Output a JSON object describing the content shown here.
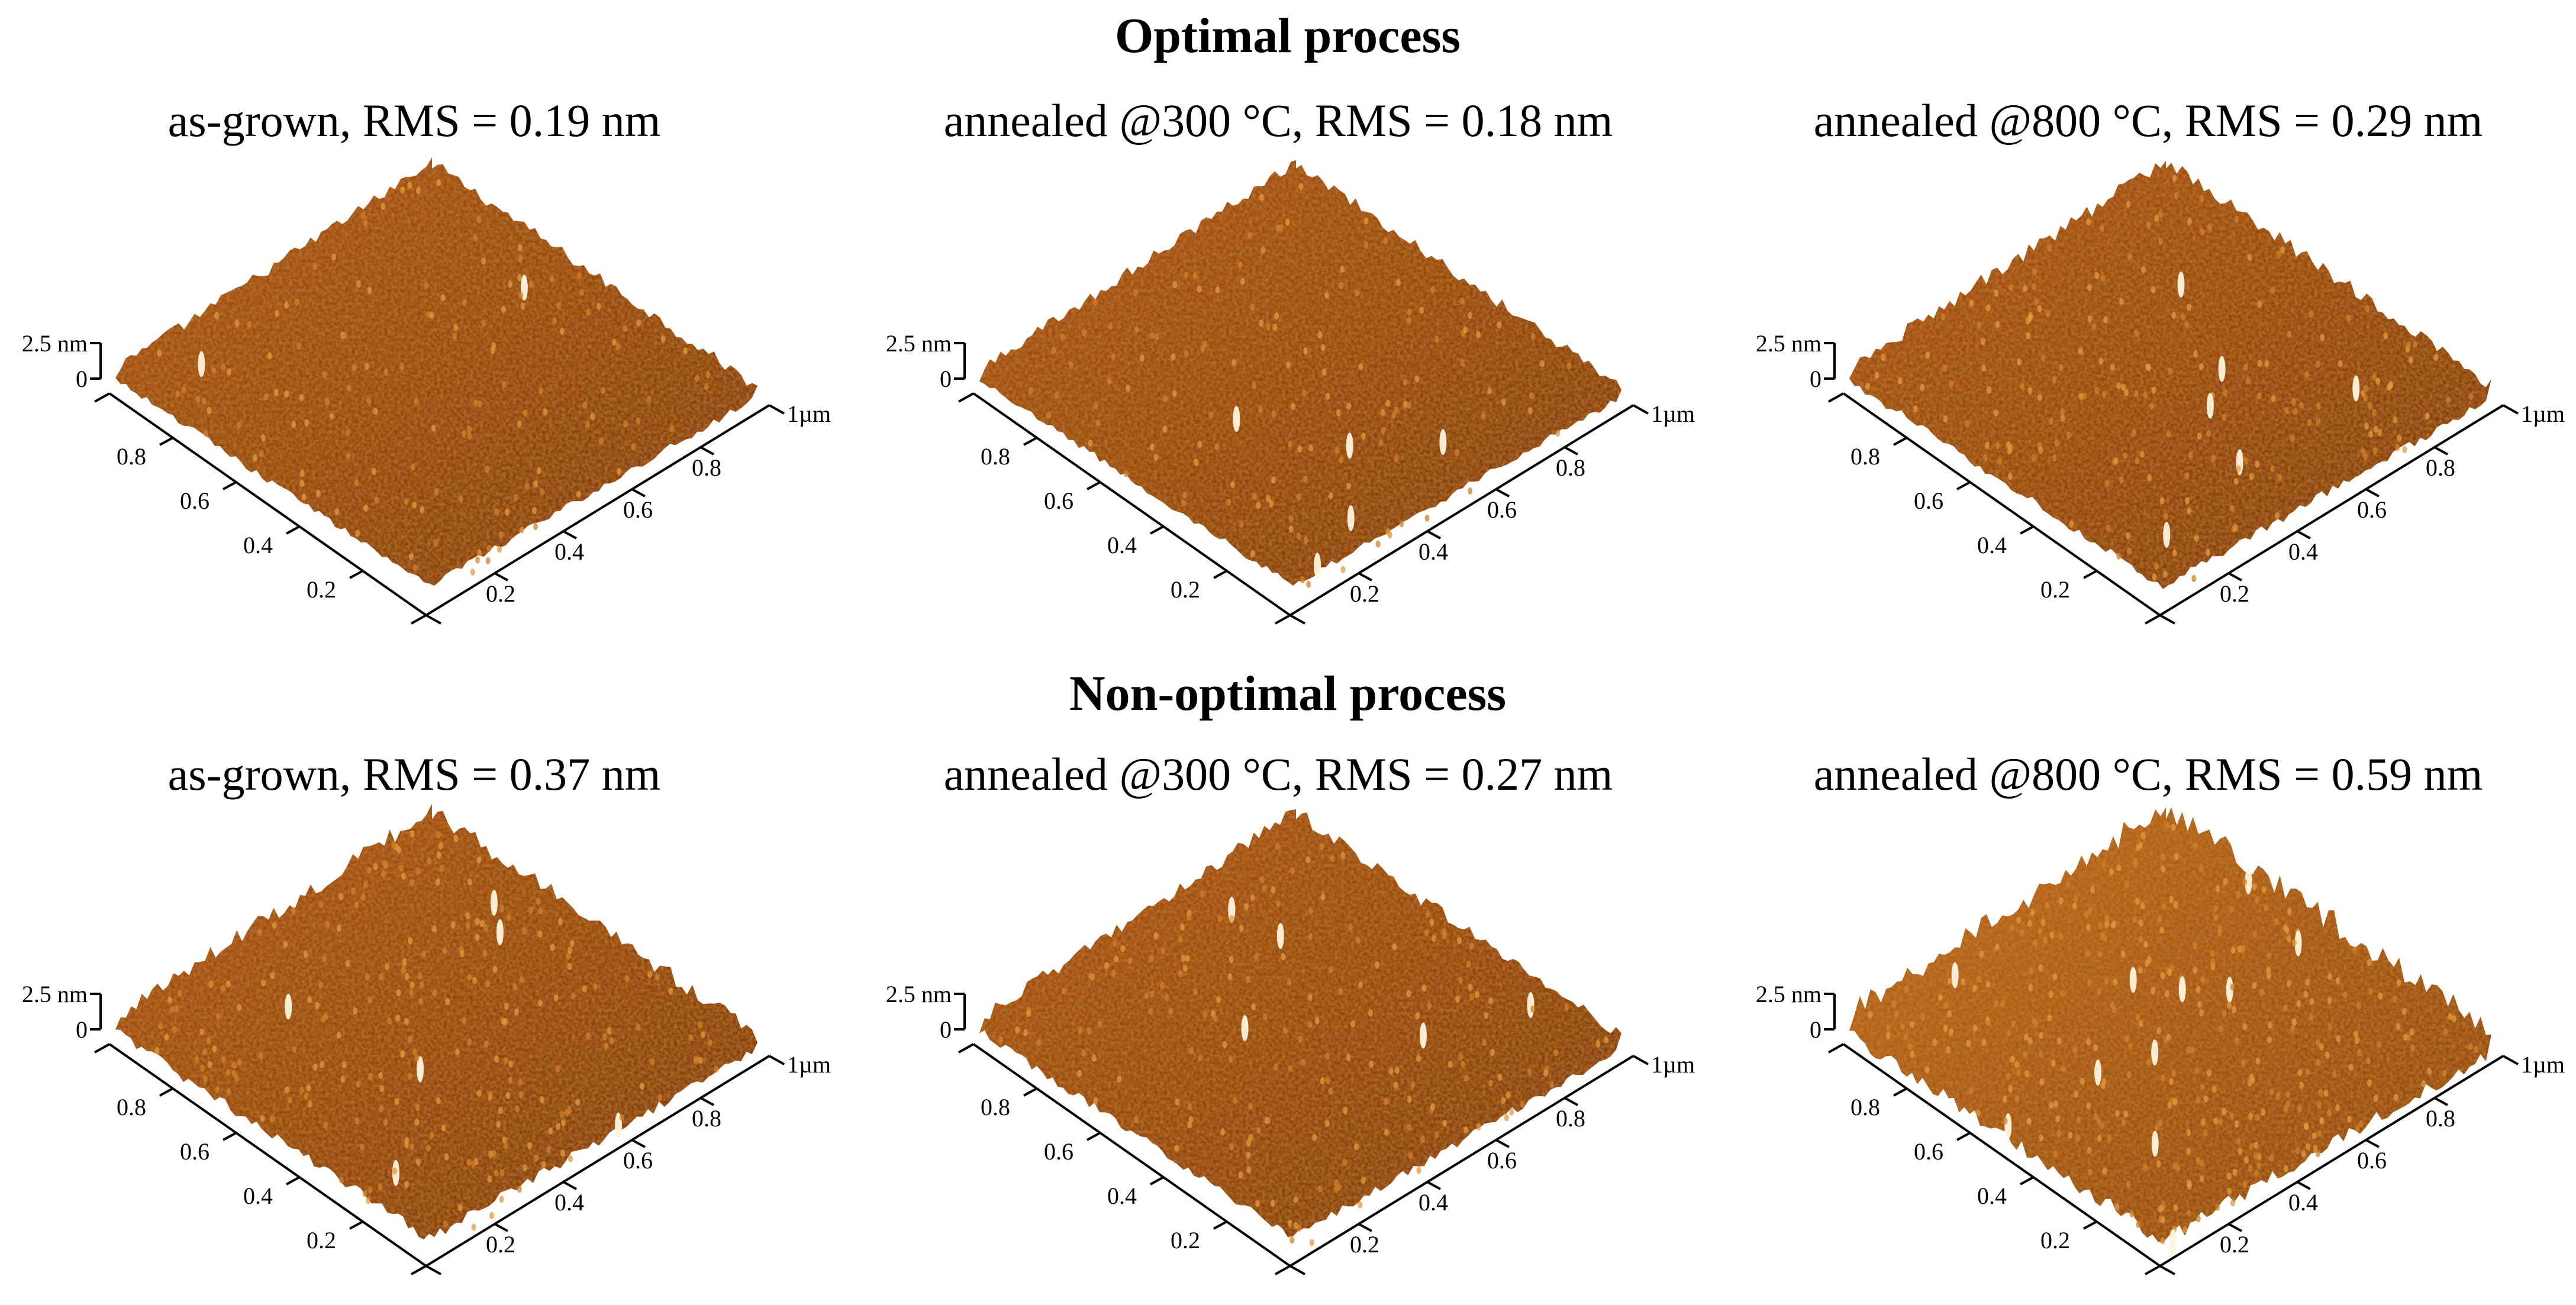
{
  "figure": {
    "sections": [
      {
        "title": "Optimal process",
        "panels": [
          {
            "title": "as-grown, RMS = 0.19 nm",
            "rms_nm": 0.19,
            "z_max_label": "2.5 nm",
            "z_zero_label": "0",
            "x_ticks": [
              "0.2",
              "0.4",
              "0.6",
              "0.8"
            ],
            "y_ticks": [
              "0.2",
              "0.4",
              "0.6",
              "0.8",
              "1µm"
            ]
          },
          {
            "title": "annealed @300 °C, RMS = 0.18 nm",
            "rms_nm": 0.18,
            "z_max_label": "2.5 nm",
            "z_zero_label": "0",
            "x_ticks": [
              "0.2",
              "0.4",
              "0.6",
              "0.8"
            ],
            "y_ticks": [
              "0.2",
              "0.4",
              "0.6",
              "0.8",
              "1µm"
            ]
          },
          {
            "title": "annealed @800 °C, RMS = 0.29 nm",
            "rms_nm": 0.29,
            "z_max_label": "2.5 nm",
            "z_zero_label": "0",
            "x_ticks": [
              "0.2",
              "0.4",
              "0.6",
              "0.8"
            ],
            "y_ticks": [
              "0.2",
              "0.4",
              "0.6",
              "0.8",
              "1µm"
            ]
          }
        ]
      },
      {
        "title": "Non-optimal process",
        "panels": [
          {
            "title": "as-grown, RMS = 0.37 nm",
            "rms_nm": 0.37,
            "z_max_label": "2.5 nm",
            "z_zero_label": "0",
            "x_ticks": [
              "0.2",
              "0.4",
              "0.6",
              "0.8"
            ],
            "y_ticks": [
              "0.2",
              "0.4",
              "0.6",
              "0.8",
              "1µm"
            ]
          },
          {
            "title": "annealed @300 °C, RMS = 0.27 nm",
            "rms_nm": 0.27,
            "z_max_label": "2.5 nm",
            "z_zero_label": "0",
            "x_ticks": [
              "0.2",
              "0.4",
              "0.6",
              "0.8"
            ],
            "y_ticks": [
              "0.2",
              "0.4",
              "0.6",
              "0.8",
              "1µm"
            ]
          },
          {
            "title": "annealed @800 °C, RMS = 0.59 nm",
            "rms_nm": 0.59,
            "z_max_label": "2.5 nm",
            "z_zero_label": "0",
            "x_ticks": [
              "0.2",
              "0.4",
              "0.6",
              "0.8"
            ],
            "y_ticks": [
              "0.2",
              "0.4",
              "0.6",
              "0.8",
              "1µm"
            ]
          }
        ]
      }
    ]
  },
  "colors": {
    "surface_dark": "#5a2204",
    "surface_mid": "#9a4a0e",
    "surface_light": "#d7872a",
    "surface_peak": "#fff0d0",
    "axis": "#000000",
    "background": "#ffffff"
  }
}
